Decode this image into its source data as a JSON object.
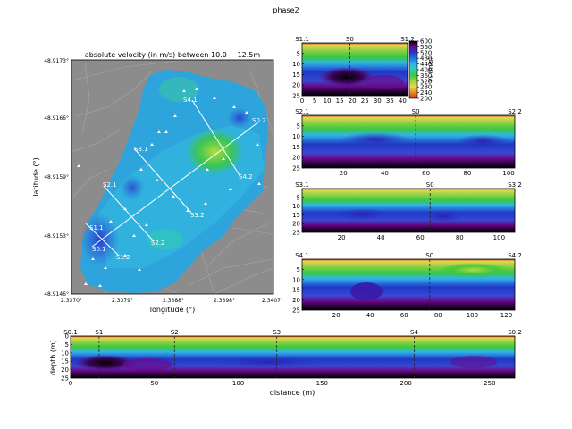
{
  "figure_title": "phase2",
  "colors": {
    "velocity_ramp": [
      "#000000",
      "#6a0a8c",
      "#7a2bd4",
      "#2038c8",
      "#1e78e0",
      "#30b4e8",
      "#2ed0a8",
      "#3cc83c",
      "#9ed24a",
      "#e8d84a",
      "#e88a20",
      "#c83018"
    ],
    "track_line": "#ffffff",
    "marker": "#ffffff"
  },
  "chart_data": [
    {
      "id": "map",
      "type": "heatmap",
      "title": "absolute velocity (in m/s)  between 10.0 − 12.5m",
      "xlabel": "longitude (°)",
      "ylabel": "latitude (°)",
      "x_ticks": [
        "2.3370°",
        "2.3379°",
        "2.3388°",
        "2.3398°",
        "2.3407°"
      ],
      "y_ticks": [
        "48.9173°",
        "48.9166°",
        "48.9159°",
        "48.9153°",
        "48.9146°"
      ],
      "profiles": [
        {
          "from": "S0.1",
          "to": "S0.2"
        },
        {
          "from": "S1.1",
          "to": "S1.2"
        },
        {
          "from": "S2.1",
          "to": "S2.2"
        },
        {
          "from": "S3.1",
          "to": "S3.2"
        },
        {
          "from": "S4.1",
          "to": "S4.2"
        }
      ]
    },
    {
      "id": "p1",
      "type": "heatmap",
      "xlim": [
        0,
        42
      ],
      "ylim": [
        25,
        0
      ],
      "x_ticks": [
        "0",
        "5",
        "10",
        "15",
        "20",
        "25",
        "30",
        "35",
        "40"
      ],
      "y_ticks": [
        "5",
        "10",
        "15",
        "20",
        "25"
      ],
      "top_labels": [
        {
          "text": "S1.1",
          "pos": 0
        },
        {
          "text": "S0",
          "pos": 19
        },
        {
          "text": "S1.2",
          "pos": 42
        }
      ],
      "divider_at": 19
    },
    {
      "id": "p2",
      "type": "heatmap",
      "xlim": [
        0,
        103
      ],
      "ylim": [
        25,
        0
      ],
      "x_ticks": [
        "20",
        "40",
        "60",
        "80",
        "100"
      ],
      "y_ticks": [
        "5",
        "10",
        "15",
        "20",
        "25"
      ],
      "top_labels": [
        {
          "text": "S2.1",
          "pos": 0
        },
        {
          "text": "S0",
          "pos": 55
        },
        {
          "text": "S2.2",
          "pos": 103
        }
      ],
      "divider_at": 55
    },
    {
      "id": "p3",
      "type": "heatmap",
      "xlim": [
        0,
        108
      ],
      "ylim": [
        25,
        0
      ],
      "x_ticks": [
        "20",
        "40",
        "60",
        "80",
        "100"
      ],
      "y_ticks": [
        "5",
        "10",
        "15",
        "20",
        "25"
      ],
      "top_labels": [
        {
          "text": "S3.1",
          "pos": 0
        },
        {
          "text": "S0",
          "pos": 65
        },
        {
          "text": "S3.2",
          "pos": 108
        }
      ],
      "divider_at": 65
    },
    {
      "id": "p4",
      "type": "heatmap",
      "xlim": [
        0,
        125
      ],
      "ylim": [
        25,
        0
      ],
      "x_ticks": [
        "20",
        "40",
        "60",
        "80",
        "100",
        "120"
      ],
      "y_ticks": [
        "5",
        "10",
        "15",
        "20",
        "25"
      ],
      "top_labels": [
        {
          "text": "S4.1",
          "pos": 0
        },
        {
          "text": "S0",
          "pos": 75
        },
        {
          "text": "S4.2",
          "pos": 125
        }
      ],
      "divider_at": 75
    },
    {
      "id": "p0",
      "type": "heatmap",
      "xlim": [
        0,
        265
      ],
      "ylim": [
        25,
        0
      ],
      "xlabel": "distance (m)",
      "ylabel": "depth (m)",
      "x_ticks": [
        "0",
        "50",
        "100",
        "150",
        "200",
        "250"
      ],
      "y_ticks": [
        "0",
        "5",
        "10",
        "15",
        "20",
        "25"
      ],
      "top_labels": [
        {
          "text": "S0.1",
          "pos": 0
        },
        {
          "text": "S1",
          "pos": 17
        },
        {
          "text": "S2",
          "pos": 62
        },
        {
          "text": "S3",
          "pos": 123
        },
        {
          "text": "S4",
          "pos": 205
        },
        {
          "text": "S0.2",
          "pos": 265
        }
      ],
      "dividers": [
        17,
        62,
        123,
        205
      ]
    }
  ],
  "colorbar": {
    "label": "Vₛ (m/s)",
    "ticks": [
      "600",
      "560",
      "520",
      "480",
      "440",
      "400",
      "360",
      "320",
      "280",
      "240",
      "200"
    ]
  }
}
